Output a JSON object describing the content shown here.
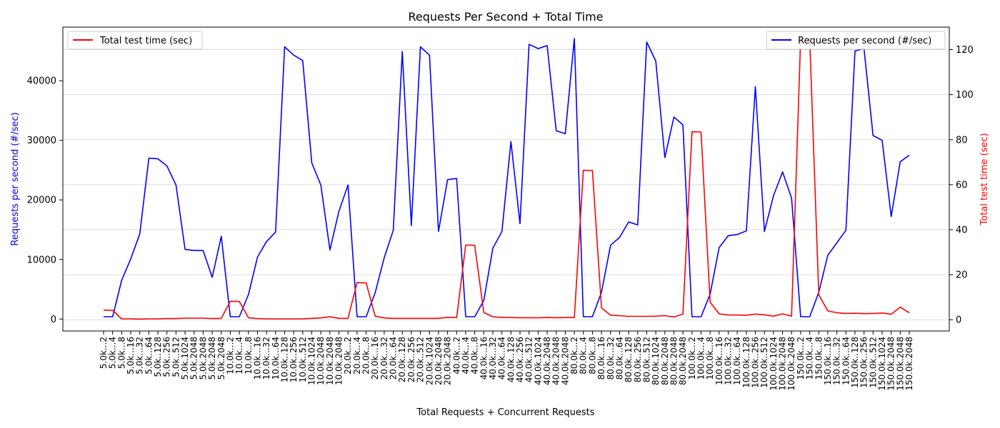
{
  "chart_data": {
    "type": "line",
    "title": "Requests Per Second + Total Time",
    "xlabel": "Total Requests + Concurrent Requests",
    "ylabel_left": "Requests per second (#/sec)",
    "ylabel_right": "Total test time (sec)",
    "ylim_left": [
      -2000,
      49000
    ],
    "ylim_right": [
      -5,
      130
    ],
    "yticks_left": [
      0,
      10000,
      20000,
      30000,
      40000
    ],
    "yticks_right": [
      0,
      20,
      40,
      60,
      80,
      100,
      120
    ],
    "grid": true,
    "colors": {
      "left": "#0000ff",
      "right": "#ff0000"
    },
    "categories": [
      "5.0k...2",
      "5.0k...4",
      "5.0k...8",
      "5.0k...16",
      "5.0k...32",
      "5.0k...64",
      "5.0k..128",
      "5.0k..256",
      "5.0k..512",
      "5.0k.1024",
      "5.0k.2048",
      "5.0k.2048",
      "5.0k.2048",
      "5.0k.2048",
      "10.0k...2",
      "10.0k...4",
      "10.0k...8",
      "10.0k...16",
      "10.0k...32",
      "10.0k...64",
      "10.0k..128",
      "10.0k..256",
      "10.0k..512",
      "10.0k.1024",
      "10.0k.2048",
      "10.0k.2048",
      "10.0k.2048",
      "20.0k...2",
      "20.0k...4",
      "20.0k...8",
      "20.0k...16",
      "20.0k...32",
      "20.0k...64",
      "20.0k..128",
      "20.0k..256",
      "20.0k..512",
      "20.0k.1024",
      "20.0k.2048",
      "20.0k.2048",
      "40.0k...2",
      "40.0k...4",
      "40.0k...8",
      "40.0k...16",
      "40.0k...32",
      "40.0k...64",
      "40.0k..128",
      "40.0k..256",
      "40.0k..512",
      "40.0k.1024",
      "40.0k.2048",
      "40.0k.2048",
      "40.0k.2048",
      "80.0k...2",
      "80.0k...4",
      "80.0k...8",
      "80.0k...16",
      "80.0k...32",
      "80.0k...64",
      "80.0k..128",
      "80.0k..256",
      "80.0k..512",
      "80.0k.1024",
      "80.0k.2048",
      "80.0k.2048",
      "80.0k.2048",
      "100.0k...2",
      "100.0k...4",
      "100.0k...8",
      "100.0k...16",
      "100.0k...32",
      "100.0k...64",
      "100.0k..128",
      "100.0k..256",
      "100.0k..512",
      "100.0k.1024",
      "100.0k.2048",
      "100.0k.2048",
      "150.0k...2",
      "150.0k...4",
      "150.0k...8",
      "150.0k...16",
      "150.0k...32",
      "150.0k...64",
      "150.0k..128",
      "150.0k..256",
      "150.0k..512",
      "150.0k.1024",
      "150.0k.2048",
      "150.0k.2048",
      "150.0k.2048"
    ],
    "series": [
      {
        "name": "Requests per second (#/sec)",
        "axis": "left",
        "values": [
          400,
          400,
          6500,
          10100,
          14300,
          27000,
          26900,
          25700,
          22500,
          11700,
          11500,
          11500,
          7000,
          13900,
          400,
          400,
          4100,
          10400,
          13000,
          14600,
          45700,
          44300,
          43400,
          26200,
          22500,
          11600,
          18100,
          22500,
          400,
          400,
          4400,
          10300,
          14900,
          44900,
          15700,
          45700,
          44300,
          14700,
          23400,
          23600,
          400,
          400,
          3100,
          11900,
          14700,
          29800,
          16000,
          46100,
          45400,
          45900,
          31600,
          31100,
          47100,
          400,
          400,
          4500,
          12400,
          13700,
          16300,
          15800,
          46500,
          43300,
          27100,
          33900,
          32600,
          400,
          400,
          4200,
          12000,
          14000,
          14200,
          14800,
          39000,
          14700,
          20700,
          24700,
          20300,
          400,
          400,
          4500,
          10700,
          12800,
          14900,
          45000,
          45400,
          30800,
          30000,
          17200,
          26400,
          27500
        ]
      },
      {
        "name": "Total test time (sec)",
        "axis": "right",
        "values": [
          4.3,
          4.2,
          0.4,
          0.4,
          0.3,
          0.4,
          0.4,
          0.5,
          0.5,
          0.7,
          0.7,
          0.7,
          0.5,
          0.6,
          8.2,
          8.1,
          0.9,
          0.5,
          0.4,
          0.4,
          0.4,
          0.4,
          0.4,
          0.6,
          0.8,
          1.3,
          0.6,
          0.6,
          16.5,
          16.4,
          1.6,
          0.8,
          0.6,
          0.6,
          0.6,
          0.6,
          0.6,
          0.6,
          1.1,
          1.0,
          33.2,
          33.1,
          3.2,
          1.3,
          1.0,
          1.0,
          0.9,
          0.9,
          0.9,
          1.0,
          0.9,
          1.0,
          1.0,
          66.4,
          66.3,
          5.3,
          2.0,
          1.8,
          1.5,
          1.5,
          1.5,
          1.6,
          1.8,
          1.2,
          2.5,
          83.5,
          83.4,
          7.8,
          2.6,
          2.1,
          2.1,
          2.0,
          2.5,
          2.2,
          1.6,
          2.6,
          1.6,
          125.1,
          125.0,
          11.1,
          3.9,
          3.1,
          2.8,
          2.9,
          2.7,
          2.8,
          3.0,
          2.4,
          5.6,
          3.1
        ]
      }
    ],
    "legend": [
      {
        "label": "Total test time (sec)",
        "placement": "top-left"
      },
      {
        "label": "Requests per second (#/sec)",
        "placement": "top-right"
      }
    ]
  }
}
